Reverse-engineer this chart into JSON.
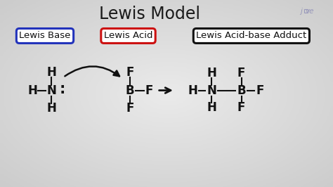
{
  "title": "Lewis Model",
  "title_fontsize": 17,
  "title_color": "#1a1a1a",
  "bg_color_center": "#e8e8e8",
  "bg_color_edge": "#b0b0b0",
  "text_color": "#111111",
  "label_lewis_base": "Lewis Base",
  "label_lewis_acid": "Lewis Acid",
  "label_adduct": "Lewis Acid-base Adduct",
  "box_base_color": "#2233bb",
  "box_acid_color": "#cc1111",
  "box_adduct_color": "#111111",
  "jove_color": "#9999bb",
  "font_size_mol": 12,
  "font_size_label": 9.5,
  "bond_lw": 1.5,
  "arrow_lw": 1.8
}
